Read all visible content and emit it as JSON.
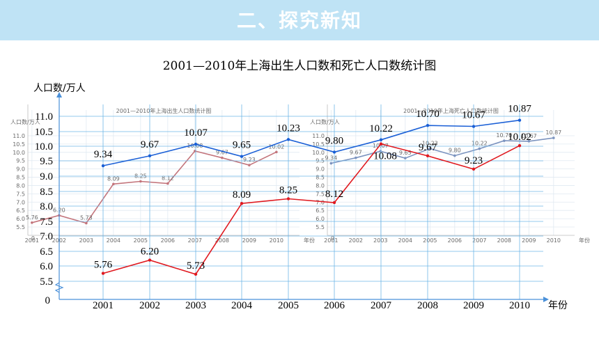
{
  "banner": {
    "title": "二、探究新知"
  },
  "chart_data": {
    "type": "line",
    "title": "2001—2010年上海出生人口数和死亡人口数统计图",
    "ylabel": "人口数/万人",
    "xlabel": "年份",
    "x": [
      "2001",
      "2002",
      "2003",
      "2004",
      "2005",
      "2006",
      "2007",
      "2008",
      "2009",
      "2010"
    ],
    "y_ticks": [
      "5.5",
      "6.0",
      "6.5",
      "7.0",
      "7.5",
      "8.0",
      "8.5",
      "9.0",
      "9.5",
      "10.0",
      "10.5",
      "11.0"
    ],
    "y_origin_label": "0",
    "ylim": [
      5.5,
      11.0
    ],
    "axis_break": true,
    "grid": true,
    "series": [
      {
        "values": [
          9.34,
          9.67,
          10.07,
          9.65,
          10.23,
          9.8,
          10.22,
          10.7,
          10.67,
          10.87
        ],
        "labels": [
          "9.34",
          "9.67",
          "10.07",
          "9.65",
          "10.23",
          "9.80",
          "10.22",
          "10.70",
          "10.67",
          "10.87"
        ],
        "color": "#1a5fd6"
      },
      {
        "values": [
          5.76,
          6.2,
          5.73,
          8.09,
          8.25,
          8.12,
          10.08,
          9.67,
          9.23,
          10.02
        ],
        "labels": [
          "5.76",
          "6.20",
          "5.73",
          "8.09",
          "8.25",
          "8.12",
          "10.08",
          "9.67",
          "9.23",
          "10.02"
        ],
        "color": "#e0191f"
      }
    ],
    "insets": [
      {
        "title": "2001—2010年上海出生人口数统计图",
        "ylabel": "人口数/万人",
        "xlabel": "年份",
        "x": [
          "2001",
          "2002",
          "2003",
          "2004",
          "2005",
          "2006",
          "2007",
          "2008",
          "2009",
          "2010"
        ],
        "y_ticks": [
          "5.5",
          "6.0",
          "6.5",
          "7.0",
          "7.5",
          "8.0",
          "8.5",
          "9.0",
          "9.5",
          "10.0",
          "10.5",
          "11.0"
        ],
        "values": [
          5.76,
          6.2,
          5.73,
          8.09,
          8.25,
          8.12,
          10.08,
          9.67,
          9.23,
          10.02
        ],
        "labels": [
          "5.76",
          "6.20",
          "5.73",
          "8.09",
          "8.25",
          "8.12",
          "10.08",
          "9.67",
          "9.23",
          "10.02"
        ],
        "color": "#b5525b"
      },
      {
        "title": "2001—2010年上海死亡人口数统计图",
        "ylabel": "人口数/万人",
        "xlabel": "年份",
        "x": [
          "2001",
          "2002",
          "2003",
          "2004",
          "2005",
          "2006",
          "2007",
          "2008",
          "2009",
          "2010"
        ],
        "y_ticks": [
          "5.5",
          "6.0",
          "6.5",
          "7.0",
          "7.5",
          "8.0",
          "8.5",
          "9.0",
          "9.5",
          "10.0",
          "10.5",
          "11.0"
        ],
        "values": [
          9.34,
          9.67,
          10.07,
          9.65,
          10.23,
          9.8,
          10.22,
          10.7,
          10.67,
          10.87
        ],
        "labels": [
          "9.34",
          "9.67",
          "10.07",
          "9.65",
          "10.23",
          "9.80",
          "10.22",
          "10.70",
          "10.67",
          "10.87"
        ],
        "color": "#5b79b0"
      }
    ]
  }
}
